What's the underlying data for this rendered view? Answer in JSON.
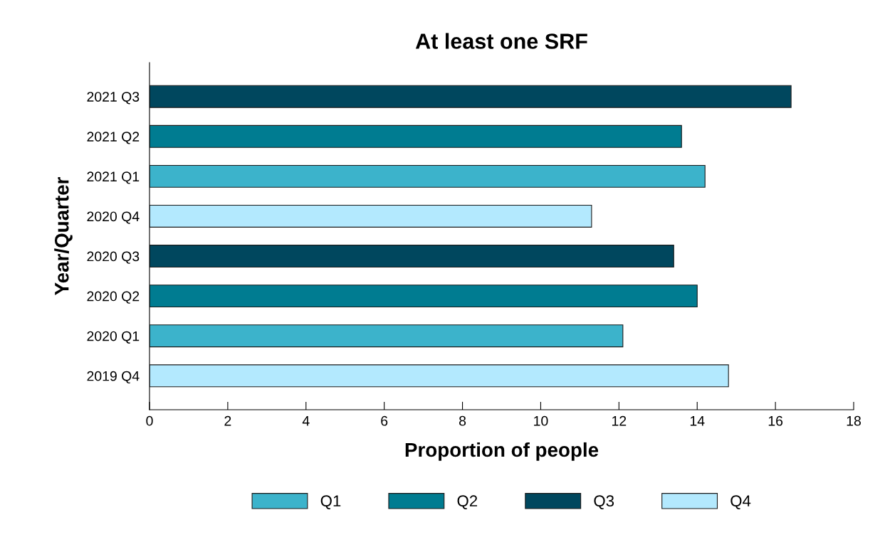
{
  "chart_data": {
    "type": "bar",
    "orientation": "horizontal",
    "stacked": true,
    "title": "At least one SRF",
    "xlabel": "Proportion of people",
    "ylabel": "Year/Quarter",
    "categories": [
      "2021 Q3",
      "2021 Q2",
      "2021 Q1",
      "2020 Q4",
      "2020 Q3",
      "2020 Q2",
      "2020 Q1",
      "2019 Q4"
    ],
    "series": [
      {
        "name": "Q1",
        "color": "#3cb3cb",
        "values": [
          null,
          null,
          14.2,
          null,
          null,
          null,
          12.1,
          null
        ]
      },
      {
        "name": "Q2",
        "color": "#007c91",
        "values": [
          null,
          13.6,
          null,
          null,
          null,
          14.0,
          null,
          null
        ]
      },
      {
        "name": "Q3",
        "color": "#00475e",
        "values": [
          16.4,
          null,
          null,
          null,
          13.4,
          null,
          null,
          null
        ]
      },
      {
        "name": "Q4",
        "color": "#b3e9fe",
        "values": [
          null,
          null,
          null,
          11.3,
          null,
          null,
          null,
          14.8
        ]
      }
    ],
    "xlim": [
      0,
      18
    ],
    "xticks": [
      0,
      2,
      4,
      6,
      8,
      10,
      12,
      14,
      16,
      18
    ],
    "grid": false,
    "legend": "bottom"
  }
}
